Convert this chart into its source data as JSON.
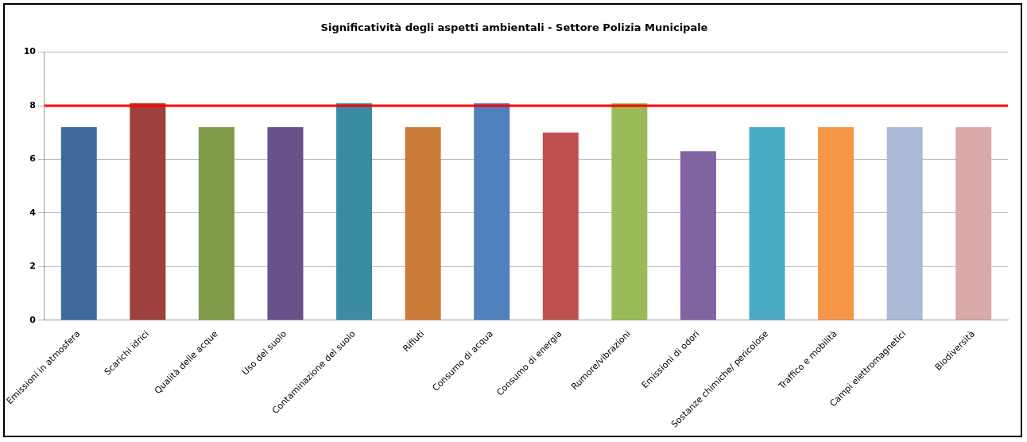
{
  "chart_data": {
    "type": "bar",
    "title": "Significatività degli aspetti ambientali - Settore Polizia Municipale",
    "categories": [
      "Emissioni in atmosfera",
      "Scarichi idrici",
      "Qualità delle acque",
      "Uso del suolo",
      "Contaminazione del suolo",
      "Rifiuti",
      "Consumo di acqua",
      "Consumo di energia",
      "Rumore/vibrazioni",
      "Emissioni di odori",
      "Sostanze chimiche/ pericolose",
      "Traffico e mobilità",
      "Campi elettromagnetici",
      "Biodiversità"
    ],
    "values": [
      7.2,
      8.1,
      7.2,
      7.2,
      8.1,
      7.2,
      8.1,
      7.0,
      8.1,
      6.3,
      7.2,
      7.2,
      7.2,
      7.2
    ],
    "colors": [
      "#3f689b",
      "#9d403e",
      "#7f9a48",
      "#69518a",
      "#3b8ba2",
      "#cb7b38",
      "#4f81bd",
      "#c0504d",
      "#9bbb59",
      "#8064a2",
      "#4bacc6",
      "#f79646",
      "#aabad7",
      "#d9a9a9"
    ],
    "ylim": [
      0,
      10
    ],
    "yticks": [
      0,
      2,
      4,
      6,
      8,
      10
    ],
    "grid": "y",
    "legend": false,
    "ref_lines": [
      {
        "axis": "y",
        "value": 8,
        "color": "#ff0000"
      }
    ]
  }
}
